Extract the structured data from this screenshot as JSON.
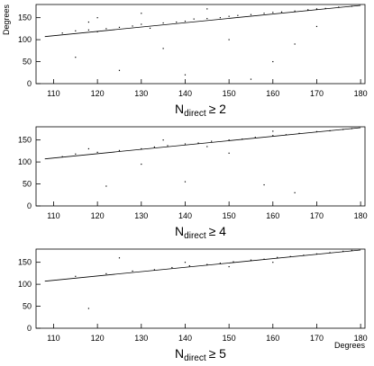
{
  "chart_data": [
    {
      "type": "scatter",
      "title": {
        "main": "N",
        "subscript": "direct",
        "rest": "≥ 2"
      },
      "ylabel": "Degrees",
      "xlim": [
        106,
        181
      ],
      "ylim": [
        0,
        180
      ],
      "xticks": [
        110,
        120,
        130,
        140,
        150,
        160,
        170,
        180
      ],
      "yticks": [
        0,
        50,
        100,
        150
      ],
      "color": "#000000",
      "points": {
        "x": [
          112,
          115,
          118,
          120,
          122,
          125,
          128,
          130,
          132,
          135,
          138,
          140,
          142,
          145,
          148,
          150,
          152,
          155,
          158,
          160,
          162,
          165,
          168,
          170,
          172,
          175,
          178,
          115,
          125,
          135,
          140,
          150,
          160,
          170,
          130,
          145,
          120,
          155,
          165,
          118
        ],
        "y": [
          115,
          120,
          122,
          118,
          125,
          128,
          131,
          135,
          126,
          138,
          140,
          142,
          147,
          148,
          150,
          153,
          155,
          157,
          160,
          162,
          163,
          165,
          168,
          170,
          171,
          174,
          176,
          60,
          30,
          80,
          20,
          100,
          50,
          130,
          160,
          170,
          150,
          10,
          90,
          140
        ]
      },
      "fit": {
        "x": [
          108,
          180
        ],
        "y": [
          107,
          178
        ]
      }
    },
    {
      "type": "scatter",
      "title": {
        "main": "N",
        "subscript": "direct",
        "rest": "≥ 4"
      },
      "xlim": [
        106,
        181
      ],
      "ylim": [
        0,
        180
      ],
      "xticks": [
        110,
        120,
        130,
        140,
        150,
        160,
        170,
        180
      ],
      "yticks": [
        0,
        50,
        100,
        150
      ],
      "color": "#000000",
      "points": {
        "x": [
          112,
          115,
          120,
          125,
          130,
          133,
          136,
          140,
          143,
          146,
          150,
          153,
          156,
          160,
          163,
          166,
          170,
          173,
          176,
          178,
          122,
          140,
          158,
          165,
          130,
          150,
          118,
          135,
          145,
          160
        ],
        "y": [
          112,
          118,
          122,
          126,
          130,
          134,
          137,
          141,
          143,
          147,
          150,
          152,
          156,
          160,
          162,
          165,
          169,
          171,
          174,
          176,
          45,
          55,
          48,
          30,
          95,
          120,
          130,
          150,
          135,
          170
        ]
      },
      "fit": {
        "x": [
          108,
          180
        ],
        "y": [
          107,
          178
        ]
      }
    },
    {
      "type": "scatter",
      "title": {
        "main": "N",
        "subscript": "direct",
        "rest": "≥ 5"
      },
      "xlabel": "Degrees",
      "xlim": [
        106,
        181
      ],
      "ylim": [
        0,
        180
      ],
      "xticks": [
        110,
        120,
        130,
        140,
        150,
        160,
        170,
        180
      ],
      "yticks": [
        0,
        50,
        100,
        150
      ],
      "color": "#000000",
      "points": {
        "x": [
          115,
          122,
          128,
          133,
          137,
          141,
          145,
          148,
          151,
          155,
          158,
          161,
          164,
          167,
          170,
          173,
          176,
          178,
          118,
          125,
          140,
          150,
          160
        ],
        "y": [
          118,
          124,
          130,
          133,
          138,
          142,
          145,
          148,
          151,
          155,
          157,
          161,
          163,
          166,
          169,
          172,
          175,
          177,
          45,
          160,
          150,
          140,
          150
        ]
      },
      "fit": {
        "x": [
          108,
          180
        ],
        "y": [
          107,
          178
        ]
      }
    }
  ]
}
